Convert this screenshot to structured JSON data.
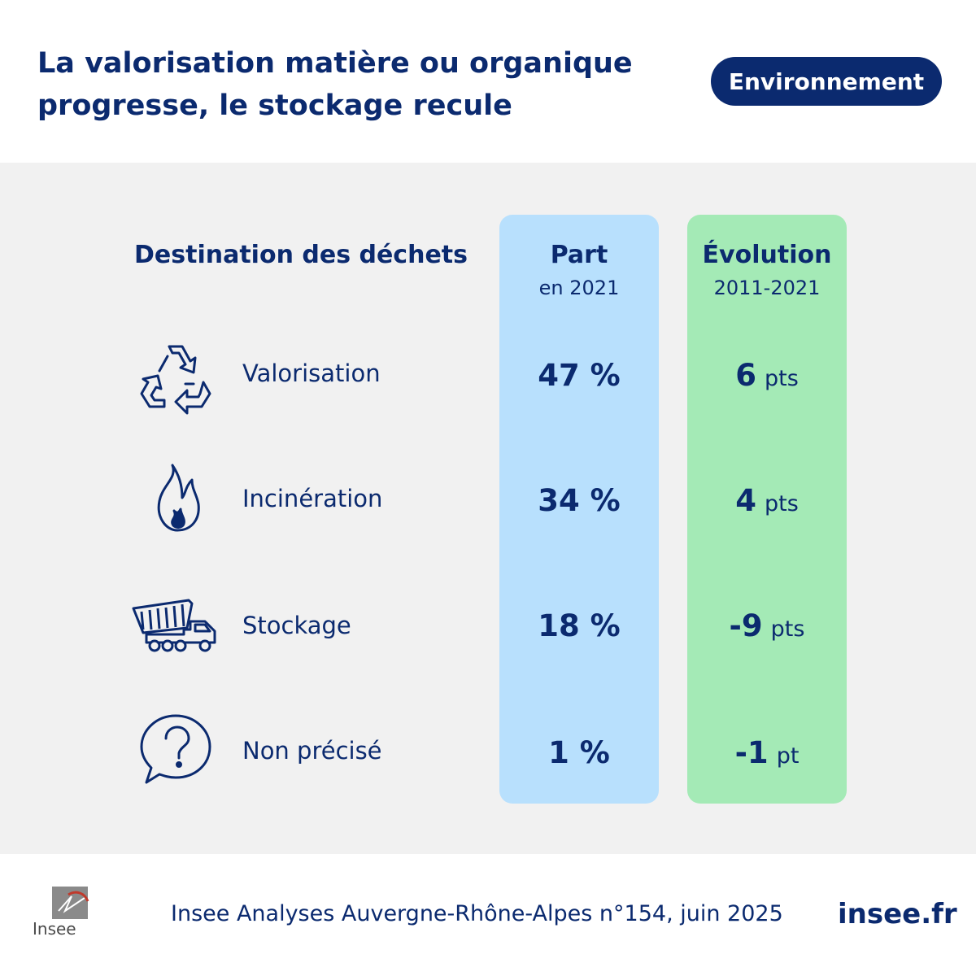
{
  "header": {
    "title": "La valorisation matière ou organique progresse, le stockage recule",
    "badge": "Environnement"
  },
  "table": {
    "destination_header": "Destination des déchets",
    "part_header": "Part",
    "part_sub": "en 2021",
    "evolution_header": "Évolution",
    "evolution_sub": "2011-2021",
    "rows": [
      {
        "label": "Valorisation",
        "icon": "recycle-icon",
        "part": "47 %",
        "evolution_value": "6",
        "evolution_unit": "pts"
      },
      {
        "label": "Incinération",
        "icon": "flame-icon",
        "part": "34 %",
        "evolution_value": "4",
        "evolution_unit": "pts"
      },
      {
        "label": "Stockage",
        "icon": "dump-truck-icon",
        "part": "18 %",
        "evolution_value": "-9",
        "evolution_unit": "pts"
      },
      {
        "label": "Non précisé",
        "icon": "question-bubble-icon",
        "part": "1 %",
        "evolution_value": "-1",
        "evolution_unit": "pt"
      }
    ]
  },
  "footer": {
    "logo_text": "Insee",
    "source": "Insee Analyses Auvergne-Rhône-Alpes n°154, juin 2025",
    "site": "insee.fr"
  },
  "colors": {
    "navy": "#0b2a6f",
    "part_column": "#b8e0fd",
    "evolution_column": "#a4eab6",
    "panel": "#f1f1f1"
  }
}
